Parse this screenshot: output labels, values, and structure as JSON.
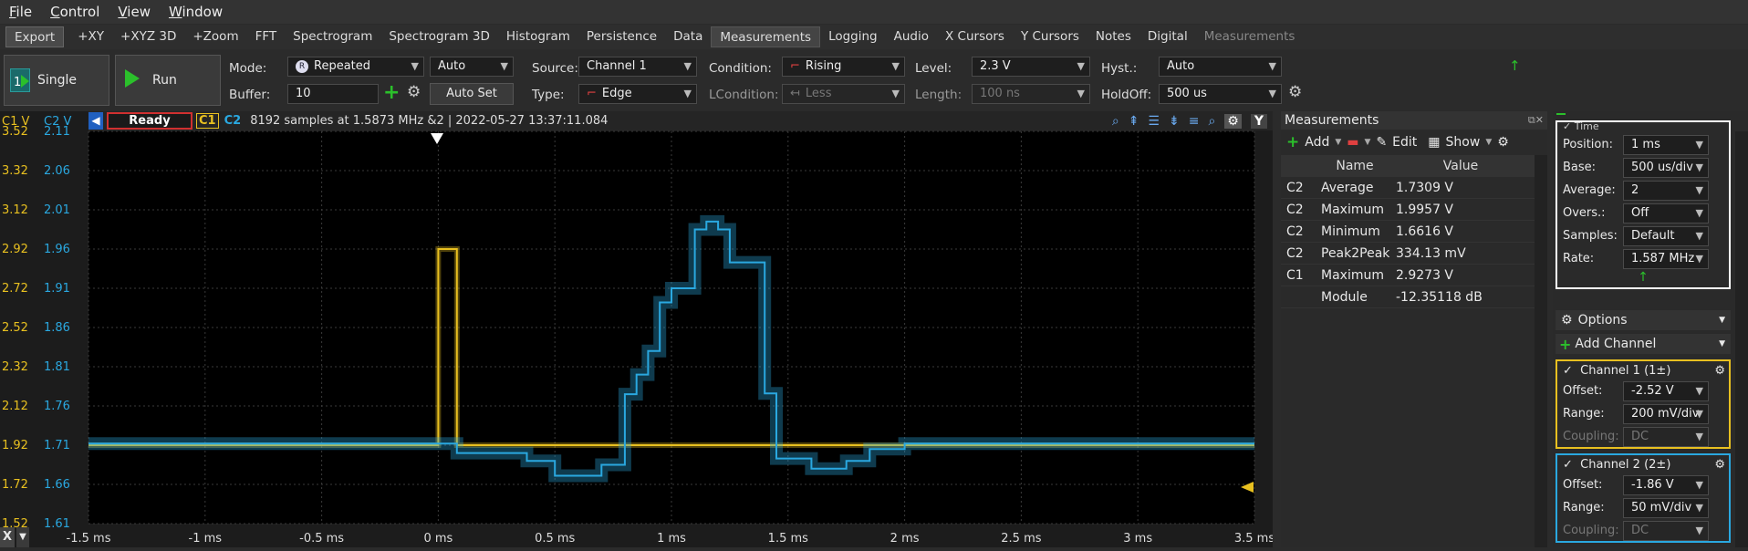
{
  "menu": [
    "File",
    "Control",
    "View",
    "Window"
  ],
  "tabs": [
    "Export",
    "+XY",
    "+XYZ 3D",
    "+Zoom",
    "FFT",
    "Spectrogram",
    "Spectrogram 3D",
    "Histogram",
    "Persistence",
    "Data",
    "Measurements",
    "Logging",
    "Audio",
    "X Cursors",
    "Y Cursors",
    "Notes",
    "Digital",
    "Measurements"
  ],
  "toolbar": {
    "single": "Single",
    "run": "Run",
    "mode_label": "Mode:",
    "mode": "Repeated",
    "mode_auto": "Auto",
    "buffer_label": "Buffer:",
    "buffer": "10",
    "autoset": "Auto Set",
    "source_label": "Source:",
    "source": "Channel 1",
    "type_label": "Type:",
    "type": "Edge",
    "condition_label": "Condition:",
    "condition": "Rising",
    "lcondition_label": "LCondition:",
    "lcondition": "Less",
    "level_label": "Level:",
    "level": "2.3 V",
    "length_label": "Length:",
    "length": "100 ns",
    "hyst_label": "Hyst.:",
    "hyst": "Auto",
    "holdoff_label": "HoldOff:",
    "holdoff": "500 us"
  },
  "status": {
    "ready": "Ready",
    "c1": "C1",
    "c2": "C2",
    "info": "8192 samples at 1.5873 MHz &2 | 2022-05-27 13:37:11.084"
  },
  "axis": {
    "c1_head": "C1 V",
    "c2_head": "C2 V",
    "y": [
      [
        "3.52",
        "2.11"
      ],
      [
        "3.32",
        "2.06"
      ],
      [
        "3.12",
        "2.01"
      ],
      [
        "2.92",
        "1.96"
      ],
      [
        "2.72",
        "1.91"
      ],
      [
        "2.52",
        "1.86"
      ],
      [
        "2.32",
        "1.81"
      ],
      [
        "2.12",
        "1.76"
      ],
      [
        "1.92",
        "1.71"
      ],
      [
        "1.72",
        "1.66"
      ],
      [
        "1.52",
        "1.61"
      ]
    ],
    "x": [
      "-1.5 ms",
      "-1 ms",
      "-0.5 ms",
      "0 ms",
      "0.5 ms",
      "1 ms",
      "1.5 ms",
      "2 ms",
      "2.5 ms",
      "3 ms",
      "3.5 ms"
    ]
  },
  "chart_data": {
    "type": "line",
    "xlabel": "",
    "ylabel": "",
    "xlim": [
      -1.5,
      3.5
    ],
    "series": [
      {
        "name": "C1",
        "color": "#e8c020",
        "x": [
          -1.5,
          -0.01,
          0.0,
          0.07,
          0.08,
          3.5
        ],
        "y": [
          1.92,
          1.92,
          2.92,
          2.92,
          1.92,
          1.92
        ]
      },
      {
        "name": "C2",
        "color": "#2aa8e0",
        "x": [
          -1.5,
          0.0,
          0.08,
          0.2,
          0.38,
          0.5,
          0.7,
          0.8,
          0.85,
          0.9,
          0.95,
          1.0,
          1.05,
          1.1,
          1.15,
          1.2,
          1.25,
          1.3,
          1.4,
          1.45,
          1.5,
          1.6,
          1.75,
          1.85,
          2.0,
          2.5,
          3.0,
          3.5
        ],
        "y": [
          1.712,
          1.712,
          1.7,
          1.7,
          1.69,
          1.671,
          1.685,
          1.775,
          1.8,
          1.83,
          1.892,
          1.91,
          1.91,
          1.985,
          1.995,
          1.985,
          1.943,
          1.943,
          1.776,
          1.693,
          1.693,
          1.68,
          1.69,
          1.705,
          1.712,
          1.712,
          1.712,
          1.712
        ]
      }
    ]
  },
  "measurements": {
    "title": "Measurements",
    "add": "Add",
    "edit": "Edit",
    "show": "Show",
    "headers": [
      "",
      "Name",
      "Value"
    ],
    "rows": [
      [
        "C2",
        "Average",
        "1.7309 V"
      ],
      [
        "C2",
        "Maximum",
        "1.9957 V"
      ],
      [
        "C2",
        "Minimum",
        "1.6616 V"
      ],
      [
        "C2",
        "Peak2Peak",
        "334.13 mV"
      ],
      [
        "C1",
        "Maximum",
        "2.9273 V"
      ],
      [
        "",
        "Module",
        "-12.35118 dB"
      ]
    ]
  },
  "time": {
    "title": "Time",
    "position_label": "Position:",
    "position": "1 ms",
    "base_label": "Base:",
    "base": "500 us/div",
    "average_label": "Average:",
    "average": "2",
    "overs_label": "Overs.:",
    "overs": "Off",
    "samples_label": "Samples:",
    "samples": "Default",
    "rate_label": "Rate:",
    "rate": "1.587 MHz"
  },
  "options": "Options",
  "add_channel": "Add Channel",
  "ch1": {
    "title": "Channel 1 (1±)",
    "offset_label": "Offset:",
    "offset": "-2.52 V",
    "range_label": "Range:",
    "range": "200 mV/div",
    "coupling_label": "Coupling:",
    "coupling": "DC"
  },
  "ch2": {
    "title": "Channel 2 (2±)",
    "offset_label": "Offset:",
    "offset": "-1.86 V",
    "range_label": "Range:",
    "range": "50 mV/div",
    "coupling_label": "Coupling:",
    "coupling": "DC"
  },
  "colors": {
    "c1": "#e8c020",
    "c2": "#2aa8e0",
    "ready_border": "#d03030"
  }
}
